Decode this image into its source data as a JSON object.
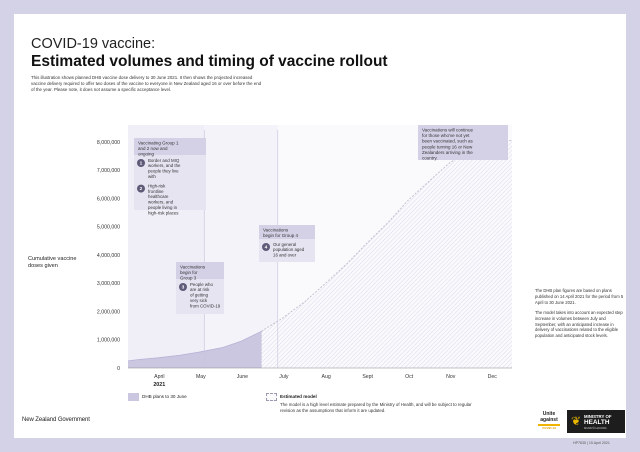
{
  "title_line1": "COVID-19 vaccine:",
  "title_line2": "Estimated volumes and timing of vaccine rollout",
  "intro_text": "This illustration shows planned DHB vaccine dose delivery to 30 June 2021. It then shows the projected increased vaccine delivery required to offer two doses of the vaccine to everyone in New Zealand aged 16 or over before the end of the year. Please note, it does not assume a specific acceptance level.",
  "colors": {
    "border": "#d4d2e6",
    "dhb_fill": "#cbc7e1",
    "callout_fill": "#e6e4f1",
    "callout_header": "#d4d1e7",
    "number_badge": "#5e5a78",
    "estimate_line": "#c3c2cf"
  },
  "chart_data": {
    "type": "area",
    "ylabel": "Cumulative vaccine doses given",
    "xlabel": "",
    "x_tick_labels": [
      "April",
      "May",
      "June",
      "July",
      "Aug",
      "Sept",
      "Oct",
      "Nov",
      "Dec"
    ],
    "x_year_label": "2021",
    "y_ticks": [
      0,
      1000000,
      2000000,
      3000000,
      4000000,
      5000000,
      6000000,
      7000000,
      8000000
    ],
    "y_tick_labels": [
      "0",
      "1,000,000",
      "2,000,000",
      "3,000,000",
      "4,000,000",
      "5,000,000",
      "6,000,000",
      "7,000,000",
      "8,000,000"
    ],
    "ylim": [
      0,
      8600000
    ],
    "grid": false,
    "series": [
      {
        "name": "DHB plans to 30 June",
        "style": "solid-fill",
        "x": [
          "2021-03-24",
          "2021-04-01",
          "2021-04-15",
          "2021-05-01",
          "2021-05-15",
          "2021-06-01",
          "2021-06-15",
          "2021-06-30"
        ],
        "y": [
          250000,
          300000,
          360000,
          450000,
          560000,
          720000,
          950000,
          1300000
        ]
      },
      {
        "name": "Estimated model",
        "style": "dashed-hatched",
        "x": [
          "2021-06-30",
          "2021-07-15",
          "2021-08-01",
          "2021-08-15",
          "2021-09-01",
          "2021-09-15",
          "2021-10-01",
          "2021-10-15",
          "2021-11-01",
          "2021-11-15",
          "2021-12-01",
          "2021-12-15",
          "2021-12-31"
        ],
        "y": [
          1300000,
          1750000,
          2350000,
          2950000,
          3700000,
          4400000,
          5150000,
          5900000,
          6650000,
          7250000,
          7750000,
          8000000,
          8050000
        ]
      }
    ],
    "phase_starts": [
      "2021-05-19",
      "2021-07-12"
    ],
    "annotations": [
      {
        "header": "Vaccinating Group 1 and 2 now and ongoing",
        "items": [
          {
            "number": "1",
            "text": "Border and MIQ workers, and the people they live with"
          },
          {
            "number": "2",
            "text": "High-risk frontline healthcare workers, and people living in high-risk places"
          }
        ]
      },
      {
        "header": "Vaccinations begin for Group 3",
        "items": [
          {
            "number": "3",
            "text": "People who are at risk of getting very sick from COVID-19"
          }
        ]
      },
      {
        "header": "Vaccinations begin for Group 4",
        "items": [
          {
            "number": "4",
            "text": "Our general population aged 16 and over"
          }
        ]
      },
      {
        "header": "Vaccinations will continue for those who've not yet been vaccinated, such as people turning 16 or New Zealanders arriving in the country.",
        "items": []
      }
    ]
  },
  "right_note_1": "The DHB plan figures are based on plans published on 14 April 2021 for the period from 5 April to 30 June 2021.",
  "right_note_2": "The model takes into account an expected step increase in volumes between July and September, with an anticipated increase in delivery of vaccinations related to the eligible population and anticipated stock levels.",
  "legend_dhb": "DHB plans to 30 June",
  "legend_model_title": "Estimated model",
  "legend_model_text": "The model is a high level estimate prepared by the Ministry of Health, and will be subject to regular revision as the assumptions that inform it are updated.",
  "footer_left": "New Zealand Government",
  "unite_text": "Unite against",
  "unite_tag": "COVID-19",
  "moh_line1": "MINISTRY OF",
  "moh_line2": "HEALTH",
  "moh_line3": "MANATŪ HAUORA",
  "ref_code": "HP7635 | 15 April 2021"
}
